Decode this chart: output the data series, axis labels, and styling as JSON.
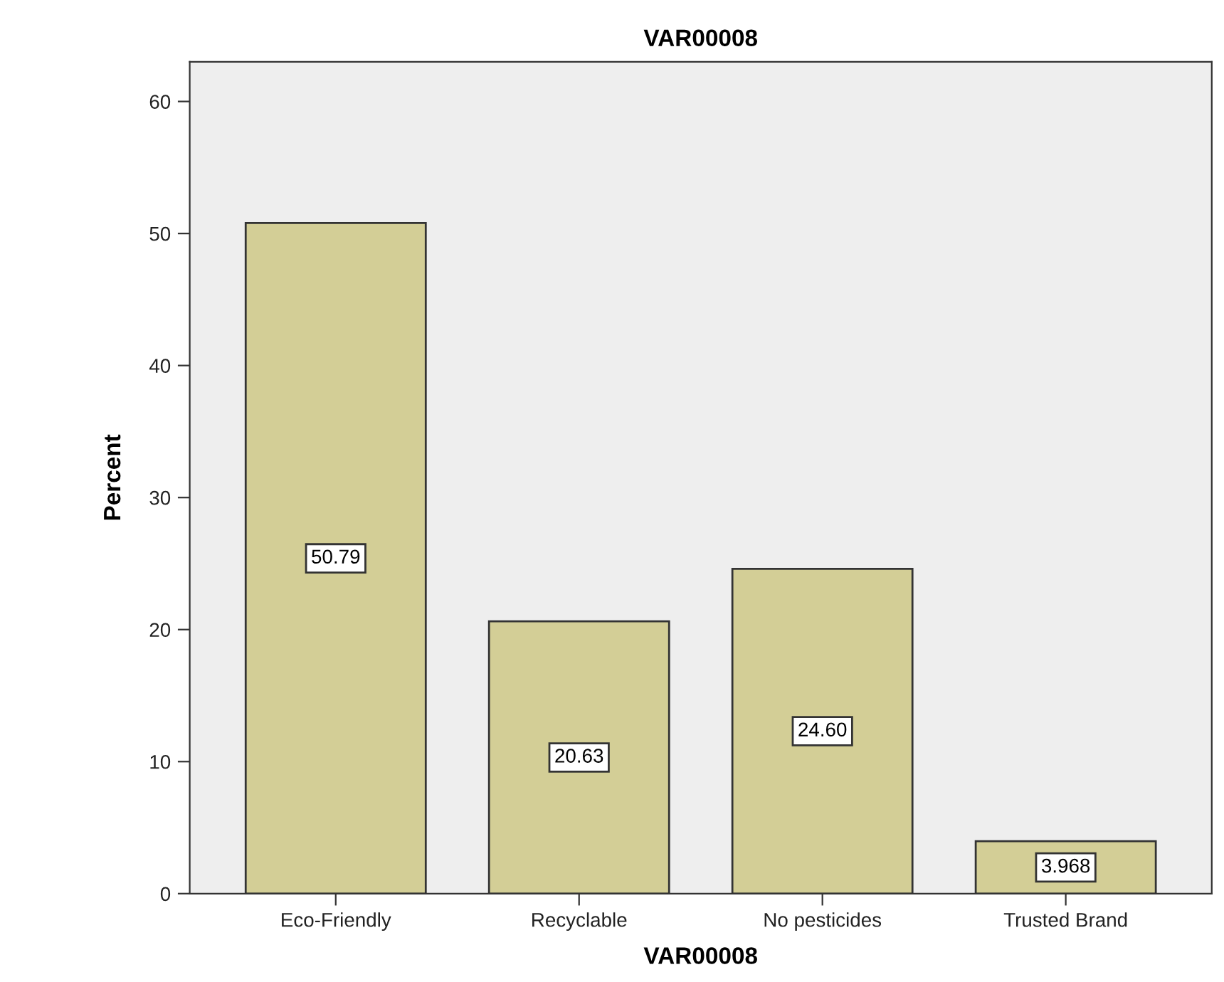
{
  "chart_data": {
    "type": "bar",
    "title": "VAR00008",
    "xlabel": "VAR00008",
    "ylabel": "Percent",
    "categories": [
      "Eco-Friendly",
      "Recyclable",
      "No pesticides",
      "Trusted Brand"
    ],
    "values": [
      50.79,
      20.63,
      24.6,
      3.968
    ],
    "value_labels": [
      "50.79",
      "20.63",
      "24.60",
      "3.968"
    ],
    "color": "#d3ce96",
    "ylim": [
      0,
      63
    ],
    "yticks": [
      0,
      10,
      20,
      30,
      40,
      50,
      60
    ],
    "grid": false,
    "legend": false
  }
}
